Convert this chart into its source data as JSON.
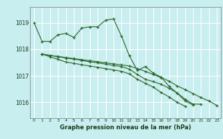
{
  "title": "Graphe pression niveau de la mer (hPa)",
  "background_color": "#c8eef0",
  "grid_color": "#ffffff",
  "line_color": "#2d6a2d",
  "xlim": [
    -0.5,
    23.5
  ],
  "ylim": [
    1015.4,
    1019.6
  ],
  "yticks": [
    1016,
    1017,
    1018,
    1019
  ],
  "xticks": [
    0,
    1,
    2,
    3,
    4,
    5,
    6,
    7,
    8,
    9,
    10,
    11,
    12,
    13,
    14,
    15,
    16,
    17,
    18,
    19,
    20,
    21,
    22,
    23
  ],
  "series": [
    {
      "x": [
        0,
        1,
        2,
        3,
        4,
        5,
        6,
        7,
        8,
        9,
        10,
        11,
        12,
        13,
        14,
        15,
        16,
        17,
        18,
        19,
        20
      ],
      "y": [
        1019.0,
        1018.3,
        1018.3,
        1018.55,
        1018.6,
        1018.45,
        1018.8,
        1018.85,
        1018.85,
        1019.1,
        1019.15,
        1018.5,
        1017.75,
        1017.2,
        1017.35,
        1017.1,
        1016.95,
        1016.6,
        1016.35,
        1016.05,
        1015.9
      ]
    },
    {
      "x": [
        1,
        2,
        3,
        4,
        5,
        6,
        7,
        8,
        9,
        10,
        11,
        12,
        13,
        14,
        15,
        16,
        17,
        18,
        19,
        20,
        21,
        22,
        23
      ],
      "y": [
        1017.82,
        1017.77,
        1017.73,
        1017.69,
        1017.65,
        1017.61,
        1017.57,
        1017.53,
        1017.49,
        1017.45,
        1017.41,
        1017.37,
        1017.27,
        1017.17,
        1017.05,
        1016.93,
        1016.8,
        1016.62,
        1016.48,
        1016.33,
        1016.18,
        1016.05,
        1015.88
      ]
    },
    {
      "x": [
        1,
        2,
        3,
        4,
        5,
        6,
        7,
        8,
        9,
        10,
        11,
        12,
        13,
        14,
        15,
        16,
        17,
        18,
        19,
        20,
        21
      ],
      "y": [
        1017.82,
        1017.77,
        1017.72,
        1017.67,
        1017.63,
        1017.58,
        1017.53,
        1017.49,
        1017.44,
        1017.39,
        1017.35,
        1017.25,
        1017.05,
        1016.87,
        1016.78,
        1016.68,
        1016.53,
        1016.35,
        1016.12,
        1015.93,
        1015.93
      ]
    },
    {
      "x": [
        1,
        2,
        3,
        4,
        5,
        6,
        7,
        8,
        9,
        10,
        11,
        12,
        13,
        14,
        15,
        16,
        17,
        18,
        19
      ],
      "y": [
        1017.82,
        1017.72,
        1017.62,
        1017.52,
        1017.47,
        1017.42,
        1017.37,
        1017.32,
        1017.27,
        1017.22,
        1017.17,
        1017.07,
        1016.87,
        1016.72,
        1016.57,
        1016.37,
        1016.2,
        1016.0,
        1015.85
      ]
    }
  ]
}
